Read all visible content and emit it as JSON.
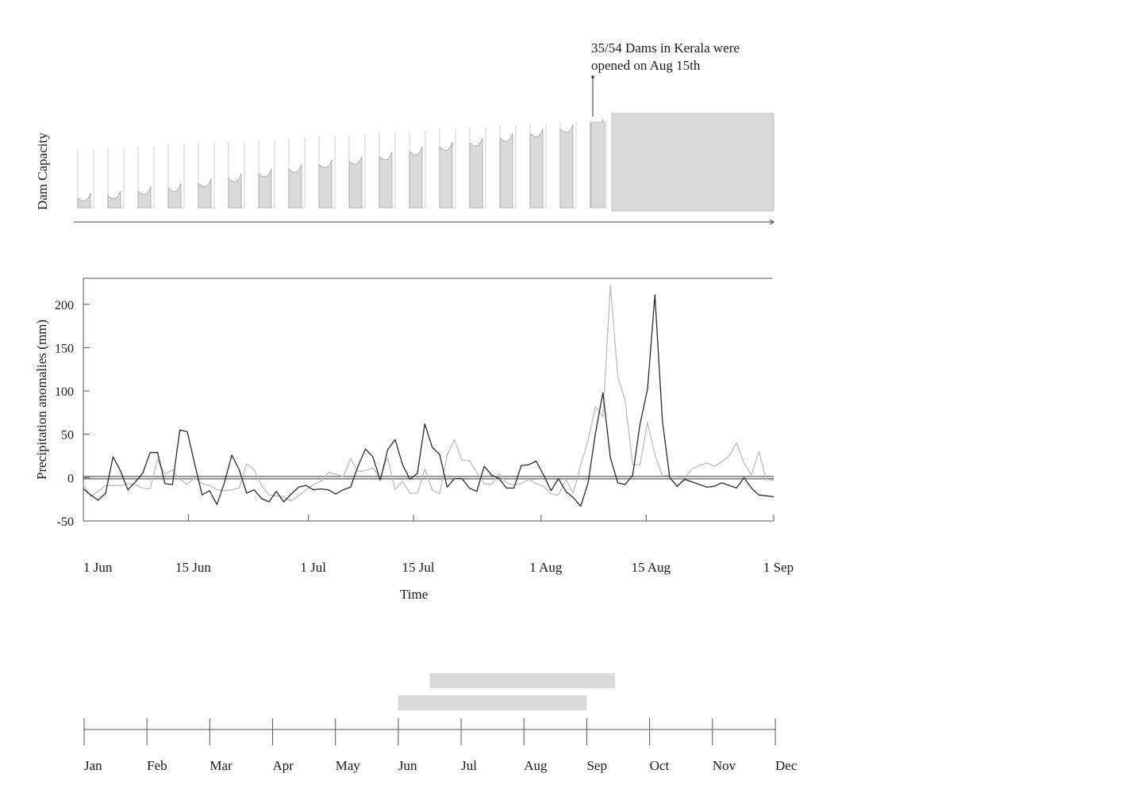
{
  "annotation": {
    "line1": "35/54 Dams in Kerala were",
    "line2": "opened on Aug 15th"
  },
  "dam_panel": {
    "ylabel": "Dam Capacity",
    "levels": [
      0.2,
      0.24,
      0.32,
      0.37,
      0.44,
      0.52,
      0.59,
      0.65,
      0.71,
      0.75,
      0.8,
      0.86,
      0.91,
      0.95,
      1.0,
      1.04,
      1.08,
      1.13
    ]
  },
  "precip_panel": {
    "ylabel": "Precipitation anomalies (mm)",
    "xlabel": "Time"
  },
  "season_panel": {
    "months": [
      "Jan",
      "Feb",
      "Mar",
      "Apr",
      "May",
      "Jun",
      "Jul",
      "Aug",
      "Sep",
      "Oct",
      "Nov",
      "Dec"
    ]
  },
  "chart_data": [
    {
      "type": "line",
      "title": "",
      "xlabel": "Time",
      "ylabel": "Precipitation anomalies (mm)",
      "ylim": [
        -50,
        230
      ],
      "yticks": [
        -50,
        0,
        50,
        100,
        150,
        200
      ],
      "xticks": [
        "1 Jun",
        "15 Jun",
        "1 Jul",
        "15 Jul",
        "1 Aug",
        "15 Aug",
        "1 Sep"
      ],
      "x_start": "2018-06-01",
      "x_end": "2018-09-01",
      "grid": false,
      "series": [
        {
          "color": "#2b2b2b",
          "values": [
            -13,
            -20,
            -26,
            -18,
            24,
            8,
            -14,
            -5,
            5,
            29,
            29,
            -7,
            -8,
            55,
            53,
            16,
            -20,
            -15,
            -31,
            -6,
            26,
            9,
            -18,
            -14,
            -24,
            -28,
            -16,
            -28,
            -19,
            -11,
            -9,
            -14,
            -13,
            -14,
            -19,
            -14,
            -11,
            13,
            33,
            24,
            -3,
            32,
            44,
            15,
            -2,
            5,
            62,
            35,
            27,
            -11,
            -1,
            -1,
            -12,
            -16,
            13,
            3,
            -1,
            -12,
            -12,
            14,
            15,
            19,
            3,
            -15,
            -1,
            -16,
            -23,
            -33,
            -6,
            52,
            98,
            23,
            -6,
            -8,
            3,
            62,
            102,
            211,
            66,
            0,
            -10,
            -2,
            -5,
            -8,
            -11,
            -10,
            -6,
            -9,
            -12,
            0,
            -12,
            -20,
            -21,
            -22
          ]
        },
        {
          "color": "#bdbdbd",
          "values": [
            -8,
            -22,
            -16,
            -9,
            -9,
            -9,
            -7,
            -8,
            -12,
            -13,
            21,
            4,
            9,
            -2,
            -8,
            0,
            -7,
            -9,
            -14,
            -15,
            -14,
            -12,
            16,
            9,
            -9,
            -20,
            -21,
            -22,
            -27,
            -21,
            -14,
            -8,
            -4,
            6,
            4,
            1,
            22,
            7,
            8,
            11,
            0,
            23,
            -14,
            -4,
            -18,
            -18,
            10,
            -14,
            -19,
            26,
            44,
            20,
            20,
            6,
            -7,
            -8,
            5,
            -6,
            -8,
            -7,
            -2,
            -7,
            -10,
            -19,
            -20,
            -2,
            -18,
            15,
            43,
            82,
            70,
            222,
            117,
            88,
            15,
            15,
            64,
            26,
            2,
            3,
            -11,
            0,
            10,
            14,
            17,
            13,
            18,
            25,
            40,
            17,
            3,
            30,
            -2,
            -3
          ]
        }
      ]
    },
    {
      "type": "bar",
      "title": "",
      "categories": [
        "Jan",
        "Feb",
        "Mar",
        "Apr",
        "May",
        "Jun",
        "Jul",
        "Aug",
        "Sep",
        "Oct",
        "Nov",
        "Dec"
      ],
      "ranges": [
        {
          "start_month": 6.5,
          "end_month": 9.45
        },
        {
          "start_month": 6.0,
          "end_month": 9.0
        }
      ]
    }
  ]
}
